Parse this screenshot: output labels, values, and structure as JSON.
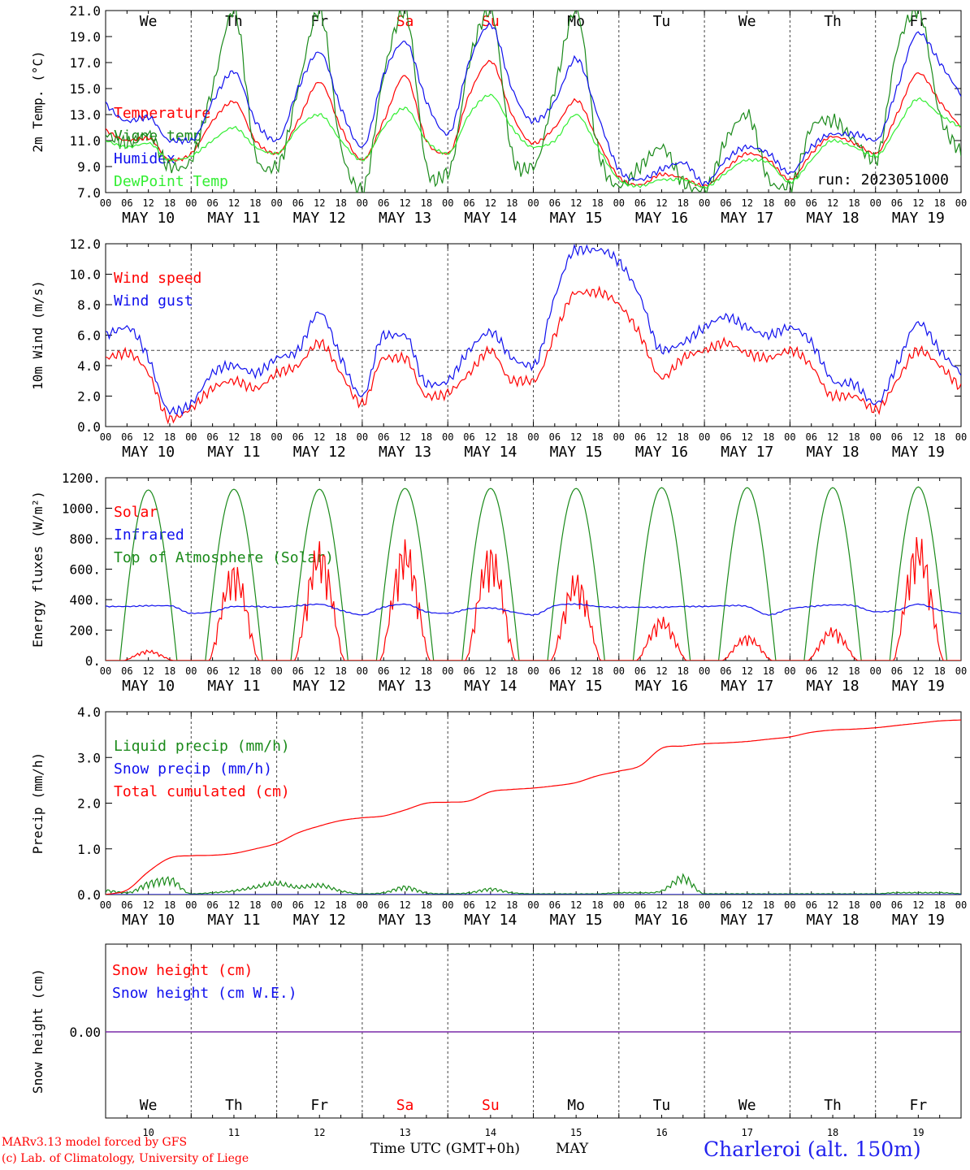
{
  "colors": {
    "red": "#ff0000",
    "green": "#1a8a1a",
    "blue": "#1010ee",
    "light_green": "#33ee33",
    "purple": "#7a2aa8",
    "grid": "#444444",
    "dash_ref": "#444444"
  },
  "days": {
    "labels": [
      "We",
      "Th",
      "Fr",
      "Sa",
      "Su",
      "Mo",
      "Tu",
      "We",
      "Th",
      "Fr"
    ],
    "weekend_flags": [
      false,
      false,
      false,
      true,
      true,
      false,
      false,
      false,
      false,
      false
    ],
    "dates": [
      "MAY 10",
      "MAY 11",
      "MAY 12",
      "MAY 13",
      "MAY 14",
      "MAY 15",
      "MAY 16",
      "MAY 17",
      "MAY 18",
      "MAY 19"
    ],
    "day_numbers": [
      "10",
      "11",
      "12",
      "13",
      "14",
      "15",
      "16",
      "17",
      "18",
      "19"
    ],
    "hour_ticks": [
      "00",
      "06",
      "12",
      "18"
    ],
    "final_tick": "00"
  },
  "footer": {
    "model": "MARv3.13 model forced by GFS",
    "copyright": "(c) Lab. of Climatology, University of Liege",
    "axis_title": "Time UTC (GMT+0h)",
    "month": "MAY",
    "station": "Charleroi (alt. 150m)"
  },
  "chart_data": [
    {
      "type": "line",
      "ylabel": "2m Temp. (°C)",
      "ylim": [
        7.0,
        21.0
      ],
      "yticks": [
        "7.0",
        "9.0",
        "11.0",
        "13.0",
        "15.0",
        "17.0",
        "19.0",
        "21.0"
      ],
      "annotation": "run: 2023051000",
      "x_unit": "hours since 2023-05-10 00 UTC",
      "series": [
        {
          "name": "Temperature",
          "color": "red",
          "x": [
            0,
            6,
            12,
            18,
            24,
            30,
            36,
            42,
            48,
            54,
            60,
            66,
            72,
            78,
            84,
            90,
            96,
            102,
            108,
            114,
            120,
            126,
            132,
            138,
            144,
            150,
            156,
            162,
            168,
            174,
            180,
            186,
            192,
            198,
            204,
            210,
            216,
            222,
            228,
            234,
            240
          ],
          "y": [
            11.8,
            11.0,
            11.2,
            9.5,
            10.0,
            12.5,
            14.0,
            11.0,
            10.0,
            12.5,
            15.5,
            12.0,
            9.5,
            12.5,
            16.0,
            11.0,
            10.0,
            14.5,
            17.1,
            13.0,
            10.8,
            12.0,
            14.1,
            11.0,
            8.2,
            7.6,
            8.4,
            8.1,
            7.5,
            8.8,
            10.0,
            9.5,
            8.0,
            10.0,
            11.3,
            10.8,
            10.0,
            13.0,
            16.2,
            14.0,
            12.0
          ]
        },
        {
          "name": "Vigne temp",
          "color": "green",
          "x": [
            0,
            6,
            12,
            18,
            24,
            30,
            36,
            42,
            48,
            54,
            60,
            66,
            72,
            78,
            84,
            90,
            96,
            102,
            108,
            114,
            120,
            126,
            132,
            138,
            144,
            150,
            156,
            162,
            168,
            174,
            180,
            186,
            192,
            198,
            204,
            210,
            216,
            222,
            228,
            234,
            240
          ],
          "y": [
            11.5,
            10.8,
            11.5,
            9.0,
            9.5,
            15.0,
            21.0,
            10.0,
            9.0,
            15.0,
            21.0,
            10.5,
            7.2,
            16.0,
            21.0,
            9.0,
            8.5,
            17.0,
            21.0,
            10.0,
            9.0,
            15.0,
            21.0,
            10.5,
            7.5,
            9.0,
            10.5,
            7.8,
            7.2,
            11.0,
            13.0,
            8.0,
            7.5,
            12.0,
            12.5,
            11.0,
            9.5,
            18.0,
            21.0,
            13.0,
            10.0
          ]
        },
        {
          "name": "Humidex",
          "color": "blue",
          "x": [
            0,
            6,
            12,
            18,
            24,
            30,
            36,
            42,
            48,
            54,
            60,
            66,
            72,
            78,
            84,
            90,
            96,
            102,
            108,
            114,
            120,
            126,
            132,
            138,
            144,
            150,
            156,
            162,
            168,
            174,
            180,
            186,
            192,
            198,
            204,
            210,
            216,
            222,
            228,
            234,
            240
          ],
          "y": [
            13.8,
            12.5,
            12.8,
            11.0,
            11.0,
            14.0,
            16.3,
            12.5,
            11.0,
            15.0,
            17.8,
            13.5,
            10.5,
            16.0,
            18.6,
            14.0,
            11.5,
            17.0,
            19.9,
            15.0,
            12.5,
            14.0,
            17.3,
            13.0,
            8.8,
            8.0,
            8.8,
            9.3,
            7.7,
            9.5,
            10.5,
            10.0,
            8.5,
            10.5,
            11.5,
            11.5,
            11.0,
            15.0,
            19.3,
            17.0,
            14.5
          ]
        },
        {
          "name": "DewPoint Temp",
          "color": "light_green",
          "x": [
            0,
            6,
            12,
            18,
            24,
            30,
            36,
            42,
            48,
            54,
            60,
            66,
            72,
            78,
            84,
            90,
            96,
            102,
            108,
            114,
            120,
            126,
            132,
            138,
            144,
            150,
            156,
            162,
            168,
            174,
            180,
            186,
            192,
            198,
            204,
            210,
            216,
            222,
            228,
            234,
            240
          ],
          "y": [
            11.0,
            10.5,
            10.8,
            9.5,
            9.8,
            11.0,
            12.0,
            10.5,
            10.0,
            12.0,
            13.0,
            11.0,
            9.5,
            12.0,
            13.5,
            11.0,
            10.0,
            13.0,
            14.5,
            12.0,
            10.5,
            11.0,
            13.0,
            10.5,
            8.0,
            7.5,
            8.0,
            8.0,
            7.4,
            8.5,
            9.5,
            9.3,
            7.8,
            9.5,
            11.0,
            10.5,
            9.8,
            12.0,
            14.2,
            13.0,
            12.0
          ]
        }
      ]
    },
    {
      "type": "line",
      "ylabel": "10m Wind (m/s)",
      "ylim": [
        0.0,
        12.0
      ],
      "yticks": [
        "0.0",
        "2.0",
        "4.0",
        "6.0",
        "8.0",
        "10.0",
        "12.0"
      ],
      "reference_line": 5.0,
      "x_unit": "hours since 2023-05-10 00 UTC",
      "series": [
        {
          "name": "Wind speed",
          "color": "red",
          "x": [
            0,
            6,
            12,
            18,
            24,
            30,
            36,
            42,
            48,
            54,
            60,
            66,
            72,
            78,
            84,
            90,
            96,
            102,
            108,
            114,
            120,
            126,
            132,
            138,
            144,
            150,
            156,
            162,
            168,
            174,
            180,
            186,
            192,
            198,
            204,
            210,
            216,
            222,
            228,
            234,
            240
          ],
          "y": [
            4.5,
            4.8,
            3.5,
            0.5,
            1.2,
            2.5,
            3.0,
            2.5,
            3.5,
            4.0,
            5.5,
            3.5,
            1.5,
            4.5,
            4.5,
            2.0,
            2.2,
            3.5,
            5.0,
            3.0,
            3.0,
            6.0,
            8.8,
            8.8,
            8.0,
            6.0,
            3.2,
            4.5,
            5.0,
            5.5,
            4.8,
            4.5,
            5.0,
            4.0,
            2.0,
            2.0,
            1.1,
            3.0,
            5.0,
            4.0,
            2.5
          ]
        },
        {
          "name": "Wind gust",
          "color": "blue",
          "x": [
            0,
            6,
            12,
            18,
            24,
            30,
            36,
            42,
            48,
            54,
            60,
            66,
            72,
            78,
            84,
            90,
            96,
            102,
            108,
            114,
            120,
            126,
            132,
            138,
            144,
            150,
            156,
            162,
            168,
            174,
            180,
            186,
            192,
            198,
            204,
            210,
            216,
            222,
            228,
            234,
            240
          ],
          "y": [
            6.0,
            6.5,
            4.5,
            1.0,
            1.5,
            3.5,
            4.0,
            3.5,
            4.5,
            5.0,
            7.5,
            4.5,
            2.0,
            6.0,
            6.0,
            2.8,
            3.0,
            5.0,
            6.2,
            4.5,
            4.0,
            8.5,
            11.6,
            11.6,
            10.8,
            8.5,
            5.0,
            5.5,
            6.5,
            7.2,
            6.5,
            6.0,
            6.5,
            5.5,
            3.0,
            2.8,
            1.5,
            4.0,
            6.8,
            5.0,
            3.5
          ]
        }
      ]
    },
    {
      "type": "line",
      "ylabel": "Energy fluxes (W/m²)",
      "ylim": [
        0,
        1200
      ],
      "yticks": [
        "0.",
        "200.",
        "400.",
        "600.",
        "800.",
        "1000.",
        "1200."
      ],
      "x_unit": "hours since 2023-05-10 00 UTC",
      "series": [
        {
          "name": "Solar",
          "color": "red",
          "daily_peak": [
            70,
            650,
            790,
            800,
            770,
            580,
            290,
            170,
            220,
            830
          ]
        },
        {
          "name": "Infrared",
          "color": "blue",
          "x": [
            0,
            6,
            12,
            18,
            24,
            30,
            36,
            42,
            48,
            54,
            60,
            66,
            72,
            78,
            84,
            90,
            96,
            102,
            108,
            114,
            120,
            126,
            132,
            138,
            144,
            150,
            156,
            162,
            168,
            174,
            180,
            186,
            192,
            198,
            204,
            210,
            216,
            222,
            228,
            234,
            240
          ],
          "y": [
            355,
            355,
            360,
            360,
            310,
            320,
            355,
            355,
            350,
            360,
            370,
            330,
            300,
            350,
            370,
            320,
            310,
            340,
            345,
            320,
            300,
            360,
            370,
            355,
            350,
            350,
            350,
            355,
            355,
            360,
            355,
            300,
            340,
            355,
            365,
            360,
            320,
            330,
            370,
            330,
            310
          ]
        },
        {
          "name": "Top of Atmosphere (Solar)",
          "color": "green",
          "daily_peak": [
            1120,
            1125,
            1125,
            1130,
            1130,
            1130,
            1135,
            1135,
            1135,
            1140
          ]
        }
      ]
    },
    {
      "type": "line",
      "ylabel": "Precip (mm/h)",
      "ylim": [
        0.0,
        4.0
      ],
      "yticks": [
        "0.0",
        "1.0",
        "2.0",
        "3.0",
        "4.0"
      ],
      "x_unit": "hours since 2023-05-10 00 UTC",
      "series": [
        {
          "name": "Liquid precip (mm/h)",
          "color": "green",
          "x": [
            0,
            6,
            12,
            18,
            24,
            30,
            36,
            42,
            48,
            54,
            60,
            66,
            72,
            78,
            84,
            90,
            96,
            102,
            108,
            114,
            120,
            126,
            132,
            138,
            144,
            150,
            156,
            162,
            168,
            174,
            180,
            186,
            192,
            198,
            204,
            210,
            216,
            222,
            228,
            234,
            240
          ],
          "y": [
            0.12,
            0.05,
            0.3,
            0.4,
            0.02,
            0.05,
            0.1,
            0.2,
            0.3,
            0.2,
            0.25,
            0.1,
            0.02,
            0.05,
            0.2,
            0.05,
            0.02,
            0.05,
            0.15,
            0.05,
            0.02,
            0.02,
            0.02,
            0.02,
            0.05,
            0.05,
            0.1,
            0.45,
            0.02,
            0.02,
            0.02,
            0.02,
            0.02,
            0.02,
            0.02,
            0.02,
            0.02,
            0.05,
            0.05,
            0.05,
            0.02
          ]
        },
        {
          "name": "Snow precip (mm/h)",
          "color": "blue",
          "x": [
            0,
            240
          ],
          "y": [
            0,
            0
          ]
        },
        {
          "name": "Total cumulated (cm)",
          "color": "red",
          "x": [
            0,
            6,
            12,
            18,
            24,
            30,
            36,
            42,
            48,
            54,
            60,
            66,
            72,
            78,
            84,
            90,
            96,
            102,
            108,
            114,
            120,
            126,
            132,
            138,
            144,
            150,
            156,
            162,
            168,
            174,
            180,
            186,
            192,
            198,
            204,
            210,
            216,
            222,
            228,
            234,
            240
          ],
          "y": [
            0.0,
            0.1,
            0.5,
            0.8,
            0.85,
            0.86,
            0.9,
            1.0,
            1.12,
            1.35,
            1.5,
            1.62,
            1.68,
            1.72,
            1.85,
            2.0,
            2.02,
            2.05,
            2.25,
            2.3,
            2.33,
            2.38,
            2.45,
            2.6,
            2.7,
            2.82,
            3.2,
            3.25,
            3.3,
            3.32,
            3.35,
            3.4,
            3.45,
            3.55,
            3.6,
            3.62,
            3.65,
            3.7,
            3.75,
            3.8,
            3.82
          ]
        }
      ]
    },
    {
      "type": "line",
      "ylabel": "Snow height (cm)",
      "yticks": [
        "0.00"
      ],
      "x_unit": "hours since 2023-05-10 00 UTC",
      "series": [
        {
          "name": "Snow height (cm)",
          "color": "red",
          "x": [
            0,
            240
          ],
          "y": [
            0,
            0
          ]
        },
        {
          "name": "Snow height (cm W.E.)",
          "color": "blue",
          "x": [
            0,
            240
          ],
          "y": [
            0,
            0
          ]
        }
      ]
    }
  ]
}
